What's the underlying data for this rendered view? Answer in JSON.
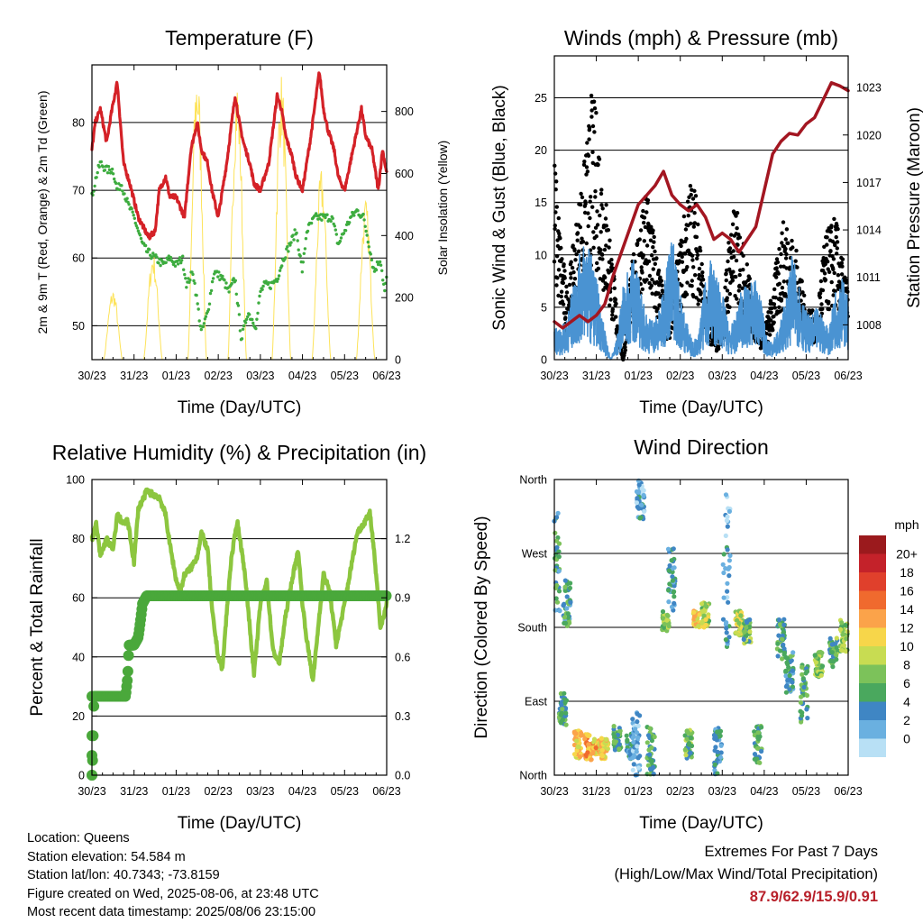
{
  "colors": {
    "temp": "#d42127",
    "dew": "#3dac3f",
    "solar": "#fde35a",
    "wind": "#4a93d2",
    "gust": "#000000",
    "pressure": "#a31621",
    "rh": "#8cc63f",
    "precip": "#4aa83b",
    "grid": "#000000"
  },
  "footer": {
    "location": "Location: Queens",
    "elevation": "Station elevation: 54.584 m",
    "latlon": "Station lat/lon: 40.7343; -73.8159",
    "created": "Figure created on Wed, 2025-08-06, at 23:48 UTC",
    "recent": "Most recent data timestamp: 2025/08/06 23:15:00"
  },
  "extremes": {
    "title": "Extremes For Past 7 Days",
    "subtitle": "(High/Low/Max Wind/Total Precipitation)",
    "values": "87.9/62.9/15.9/0.91"
  },
  "chart_data": [
    {
      "id": "temperature",
      "type": "line",
      "title": "Temperature (F)",
      "xlabel": "Time (Day/UTC)",
      "ylabel": "2m & 9m T (Red, Orange) & 2m Td (Green)",
      "y2label": "Solar Insolation (Yellow)",
      "x_ticks": [
        "30/23",
        "31/23",
        "01/23",
        "02/23",
        "03/23",
        "04/23",
        "05/23",
        "06/23"
      ],
      "xlim": [
        0,
        7
      ],
      "ylim": [
        45,
        88.5
      ],
      "y_ticks": [
        50,
        60,
        70,
        80
      ],
      "y2lim": [
        0,
        950
      ],
      "y2_ticks": [
        0,
        200,
        400,
        600,
        800
      ],
      "grid": true,
      "series": [
        {
          "key": "temp",
          "style": "line",
          "x": [
            0,
            0.08,
            0.2,
            0.35,
            0.45,
            0.6,
            0.75,
            0.9,
            1.1,
            1.35,
            1.5,
            1.6,
            1.75,
            1.85,
            2.0,
            2.2,
            2.35,
            2.5,
            2.6,
            2.75,
            2.85,
            3.0,
            3.2,
            3.4,
            3.5,
            3.6,
            3.75,
            3.85,
            4.0,
            4.2,
            4.4,
            4.5,
            4.6,
            4.75,
            4.85,
            5.0,
            5.2,
            5.4,
            5.5,
            5.6,
            5.75,
            5.85,
            6.0,
            6.2,
            6.4,
            6.5,
            6.65,
            6.8,
            6.9,
            7.0
          ],
          "y": [
            76,
            80,
            82,
            77,
            81,
            86,
            74,
            71,
            66,
            63,
            64,
            70,
            72,
            69,
            69,
            66,
            76,
            80,
            76,
            74,
            70,
            66,
            74,
            84,
            80,
            77,
            74,
            71,
            70,
            74,
            84,
            82,
            78,
            75,
            72,
            70,
            78,
            87.5,
            82,
            79,
            76,
            72,
            70,
            76,
            82,
            78,
            76,
            70,
            76,
            72.5
          ]
        },
        {
          "key": "dew",
          "style": "dots",
          "x": [
            0,
            0.1,
            0.2,
            0.35,
            0.5,
            0.6,
            0.7,
            0.85,
            1.0,
            1.2,
            1.3,
            1.5,
            1.7,
            1.85,
            2.0,
            2.15,
            2.25,
            2.4,
            2.6,
            2.75,
            2.9,
            3.1,
            3.25,
            3.4,
            3.55,
            3.7,
            3.9,
            4.0,
            4.1,
            4.25,
            4.4,
            4.55,
            4.7,
            4.85,
            5.0,
            5.1,
            5.3,
            5.4,
            5.55,
            5.7,
            5.85,
            6.0,
            6.15,
            6.3,
            6.45,
            6.55,
            6.7,
            6.85,
            6.95,
            7.0
          ],
          "y": [
            69,
            72,
            74,
            73,
            73,
            70,
            71,
            68,
            66,
            62,
            61,
            60,
            59,
            60,
            59,
            60,
            56,
            58,
            49,
            52,
            58,
            57,
            55,
            57,
            48,
            52,
            50,
            55,
            56,
            56,
            57,
            60,
            62,
            64,
            58,
            64,
            66,
            66,
            66,
            66,
            62,
            64,
            66,
            67,
            66,
            63,
            58,
            60,
            55,
            57
          ]
        },
        {
          "key": "solar",
          "style": "thin-line",
          "axis": "y2",
          "peaks": [
            0.5,
            1.45,
            2.5,
            3.45,
            4.5,
            5.45,
            6.5
          ],
          "peak_values": [
            230,
            350,
            960,
            920,
            930,
            620,
            520
          ]
        }
      ]
    },
    {
      "id": "winds",
      "type": "scatter",
      "title": "Winds (mph) & Pressure (mb)",
      "xlabel": "Time (Day/UTC)",
      "ylabel": "Sonic Wind & Gust (Blue, Black)",
      "y2label": "Station Pressure (Maroon)",
      "x_ticks": [
        "30/23",
        "31/23",
        "01/23",
        "02/23",
        "03/23",
        "04/23",
        "05/23",
        "06/23"
      ],
      "xlim": [
        0,
        7
      ],
      "ylim": [
        0,
        29
      ],
      "y_ticks": [
        0,
        5,
        10,
        15,
        20,
        25
      ],
      "y2lim": [
        1005.8,
        1025
      ],
      "y2_ticks": [
        1008,
        1011,
        1014,
        1017,
        1020,
        1023
      ],
      "grid": true,
      "series": [
        {
          "key": "pressure",
          "style": "line",
          "axis": "y2",
          "x": [
            0,
            0.2,
            0.4,
            0.6,
            0.8,
            1.0,
            1.2,
            1.4,
            1.6,
            1.8,
            2.0,
            2.2,
            2.4,
            2.6,
            2.8,
            3.0,
            3.2,
            3.4,
            3.6,
            3.8,
            4.0,
            4.2,
            4.4,
            4.6,
            4.8,
            5.0,
            5.2,
            5.4,
            5.6,
            5.8,
            6.0,
            6.2,
            6.4,
            6.6,
            6.8,
            7.0
          ],
          "y": [
            1008.2,
            1007.8,
            1008.2,
            1008.6,
            1008.2,
            1008.6,
            1009.3,
            1011.1,
            1012.6,
            1014.1,
            1015.6,
            1016.2,
            1016.8,
            1017.7,
            1016.2,
            1015.6,
            1015.2,
            1015.6,
            1014.8,
            1013.4,
            1013.8,
            1013.4,
            1012.6,
            1013.4,
            1014.2,
            1016.5,
            1018.8,
            1019.6,
            1020.1,
            1020.0,
            1020.7,
            1021.1,
            1022.2,
            1023.3,
            1023.1,
            1022.8
          ]
        },
        {
          "key": "wind",
          "style": "dense-line",
          "envelope": [
            3,
            3,
            4,
            7,
            10,
            12,
            10,
            7,
            3,
            0,
            2,
            7,
            9,
            10,
            6,
            4,
            4,
            5,
            10,
            12,
            7,
            4,
            2,
            2,
            7,
            10,
            8,
            6,
            3,
            4,
            7,
            7,
            8,
            6,
            2,
            2,
            3,
            6,
            10,
            8,
            5,
            4,
            5,
            4,
            3,
            7,
            8,
            6
          ]
        },
        {
          "key": "gust",
          "style": "dots",
          "envelope": [
            20,
            12,
            7,
            11,
            16,
            20,
            26,
            23,
            17,
            12,
            5,
            0,
            7,
            12,
            14,
            17,
            12,
            8,
            5,
            7,
            11,
            15,
            18,
            15,
            7,
            4,
            2,
            5,
            13,
            15,
            12,
            9,
            5,
            3,
            4,
            7,
            12,
            14,
            12,
            10,
            6,
            5,
            4,
            11,
            13,
            14,
            10,
            7
          ]
        }
      ]
    },
    {
      "id": "rh_precip",
      "type": "line",
      "title": "Relative Humidity (%) & Precipitation (in)",
      "xlabel": "Time (Day/UTC)",
      "ylabel": "Percent & Total Rainfall",
      "x_ticks": [
        "30/23",
        "31/23",
        "01/23",
        "02/23",
        "03/23",
        "04/23",
        "05/23",
        "06/23"
      ],
      "xlim": [
        0,
        7
      ],
      "ylim": [
        0,
        100
      ],
      "y_ticks": [
        0,
        20,
        40,
        60,
        80,
        100
      ],
      "y2lim": [
        0,
        1.5
      ],
      "y2_ticks": [
        "0.0",
        "0.3",
        "0.6",
        "0.9",
        "1.2"
      ],
      "grid": true,
      "series": [
        {
          "key": "rh",
          "style": "line",
          "x": [
            0,
            0.1,
            0.2,
            0.35,
            0.5,
            0.6,
            0.75,
            0.85,
            1.0,
            1.1,
            1.2,
            1.3,
            1.45,
            1.6,
            1.75,
            1.85,
            2.0,
            2.1,
            2.2,
            2.35,
            2.5,
            2.6,
            2.75,
            2.85,
            3.0,
            3.1,
            3.2,
            3.3,
            3.45,
            3.6,
            3.7,
            3.85,
            4.0,
            4.15,
            4.3,
            4.45,
            4.6,
            4.75,
            4.9,
            5.0,
            5.1,
            5.25,
            5.4,
            5.5,
            5.65,
            5.8,
            6.0,
            6.15,
            6.3,
            6.45,
            6.6,
            6.7,
            6.85,
            7.0
          ],
          "y": [
            80,
            85,
            74,
            80,
            76,
            88,
            85,
            86,
            72,
            90,
            93,
            96,
            95,
            94,
            88,
            78,
            66,
            62,
            68,
            70,
            74,
            82,
            76,
            56,
            40,
            36,
            55,
            72,
            86,
            72,
            58,
            34,
            58,
            66,
            42,
            38,
            54,
            66,
            76,
            58,
            46,
            32,
            54,
            68,
            62,
            44,
            58,
            70,
            82,
            85,
            89,
            76,
            50,
            58
          ]
        },
        {
          "key": "precip",
          "style": "thick-step",
          "axis": "y2",
          "x": [
            0,
            0.02,
            0.03,
            0.05,
            0.08,
            0.35,
            0.7,
            0.8,
            0.85,
            0.88,
            1.0,
            1.1,
            1.15,
            1.2,
            1.3,
            2.0,
            3.0,
            4.0,
            5.0,
            6.0,
            7.0
          ],
          "y": [
            0.0,
            0.1,
            0.2,
            0.4,
            0.4,
            0.4,
            0.4,
            0.4,
            0.5,
            0.66,
            0.66,
            0.7,
            0.78,
            0.87,
            0.91,
            0.91,
            0.91,
            0.91,
            0.91,
            0.91,
            0.91
          ]
        }
      ]
    },
    {
      "id": "wind_direction",
      "type": "scatter",
      "title": "Wind Direction",
      "xlabel": "Time (Day/UTC)",
      "ylabel": "Direction (Colored By Speed)",
      "x_ticks": [
        "30/23",
        "31/23",
        "01/23",
        "02/23",
        "03/23",
        "04/23",
        "05/23",
        "06/23"
      ],
      "xlim": [
        0,
        7
      ],
      "ylim": [
        0,
        360
      ],
      "y_ticks": [
        "North",
        "East",
        "South",
        "West",
        "North"
      ],
      "grid": true,
      "legend": {
        "title": "mph",
        "placement": "right",
        "labels": [
          "20+",
          "18",
          "16",
          "14",
          "12",
          "10",
          "8",
          "6",
          "4",
          "2",
          "0"
        ],
        "colors": [
          "#9b1a1d",
          "#c4222a",
          "#e0402c",
          "#f06a2e",
          "#fba34a",
          "#f7d64a",
          "#c8dc52",
          "#7cc25a",
          "#4aa85e",
          "#3f86c4",
          "#6ab0e0",
          "#b8e0f5"
        ]
      },
      "clusters": [
        {
          "x": 0.05,
          "dir": [
            200,
            320
          ],
          "speed": 5
        },
        {
          "x": 0.2,
          "dir": [
            60,
            100
          ],
          "speed": 6
        },
        {
          "x": 0.3,
          "dir": [
            180,
            240
          ],
          "speed": 5
        },
        {
          "x": 0.55,
          "dir": [
            20,
            55
          ],
          "speed": 12
        },
        {
          "x": 0.8,
          "dir": [
            15,
            50
          ],
          "speed": 14
        },
        {
          "x": 1.0,
          "dir": [
            25,
            45
          ],
          "speed": 13
        },
        {
          "x": 1.2,
          "dir": [
            20,
            45
          ],
          "speed": 12
        },
        {
          "x": 1.5,
          "dir": [
            30,
            60
          ],
          "speed": 6
        },
        {
          "x": 1.8,
          "dir": [
            20,
            50
          ],
          "speed": 4
        },
        {
          "x": 1.95,
          "dir": [
            0,
            80
          ],
          "speed": 2
        },
        {
          "x": 2.05,
          "dir": [
            310,
            360
          ],
          "speed": 3
        },
        {
          "x": 2.3,
          "dir": [
            0,
            60
          ],
          "speed": 6
        },
        {
          "x": 2.65,
          "dir": [
            175,
            200
          ],
          "speed": 8
        },
        {
          "x": 2.8,
          "dir": [
            200,
            280
          ],
          "speed": 4
        },
        {
          "x": 3.2,
          "dir": [
            20,
            55
          ],
          "speed": 7
        },
        {
          "x": 3.4,
          "dir": [
            180,
            200
          ],
          "speed": 12
        },
        {
          "x": 3.6,
          "dir": [
            180,
            210
          ],
          "speed": 9
        },
        {
          "x": 3.9,
          "dir": [
            0,
            60
          ],
          "speed": 4
        },
        {
          "x": 4.1,
          "dir": [
            150,
            360
          ],
          "speed": 3
        },
        {
          "x": 4.4,
          "dir": [
            170,
            200
          ],
          "speed": 10
        },
        {
          "x": 4.6,
          "dir": [
            160,
            190
          ],
          "speed": 7
        },
        {
          "x": 4.85,
          "dir": [
            15,
            60
          ],
          "speed": 6
        },
        {
          "x": 5.4,
          "dir": [
            140,
            190
          ],
          "speed": 6
        },
        {
          "x": 5.6,
          "dir": [
            100,
            150
          ],
          "speed": 5
        },
        {
          "x": 5.95,
          "dir": [
            60,
            140
          ],
          "speed": 6
        },
        {
          "x": 6.3,
          "dir": [
            120,
            150
          ],
          "speed": 8
        },
        {
          "x": 6.65,
          "dir": [
            130,
            170
          ],
          "speed": 7
        },
        {
          "x": 6.9,
          "dir": [
            150,
            190
          ],
          "speed": 8
        }
      ]
    }
  ]
}
